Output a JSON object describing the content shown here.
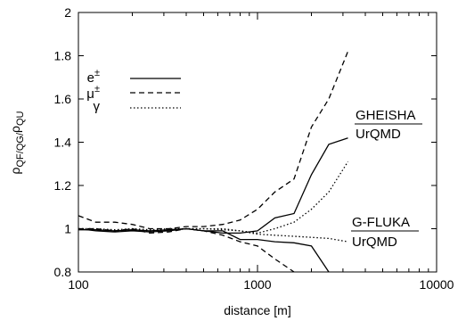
{
  "chart_data": {
    "type": "line",
    "xlabel": "distance [m]",
    "ylabel_parts": {
      "rho": "ρ",
      "sub": "QF/QG/",
      "rho2": "ρ",
      "sub2": "QU"
    },
    "xscale": "log",
    "xlim": [
      100,
      10000
    ],
    "ylim": [
      0.8,
      2.0
    ],
    "xticks": [
      100,
      1000,
      10000
    ],
    "xtick_labels": [
      "100",
      "1000",
      "10000"
    ],
    "yticks": [
      0.8,
      1.0,
      1.2,
      1.4,
      1.6,
      1.8,
      2.0
    ],
    "ytick_labels": [
      "0.8",
      "1",
      "1.2",
      "1.4",
      "1.6",
      "1.8",
      "2"
    ],
    "grid": false,
    "legend_position": "upper-left",
    "legend": [
      {
        "label_base": "e",
        "label_sup": "±",
        "style": "solid"
      },
      {
        "label_base": "μ",
        "label_sup": "±",
        "style": "dashed"
      },
      {
        "label_base": "γ",
        "label_sup": "",
        "style": "dotted"
      }
    ],
    "annotations": {
      "upper_top": "GHEISHA",
      "upper_bottom": "UrQMD",
      "lower_top": "G-FLUKA",
      "lower_bottom": "UrQMD"
    },
    "series": [
      {
        "style": "solid",
        "group": "GHEISHA",
        "x": [
          100,
          125,
          160,
          200,
          250,
          320,
          400,
          500,
          640,
          800,
          1000,
          1250,
          1600,
          2000,
          2500,
          3200
        ],
        "y": [
          0.995,
          0.995,
          0.99,
          0.995,
          0.99,
          0.995,
          1.0,
          0.99,
          0.98,
          0.98,
          0.99,
          1.05,
          1.07,
          1.25,
          1.39,
          1.42
        ]
      },
      {
        "style": "dashed",
        "group": "GHEISHA",
        "x": [
          100,
          125,
          160,
          200,
          250,
          320,
          400,
          500,
          640,
          800,
          1000,
          1250,
          1600,
          2000,
          2500,
          3200
        ],
        "y": [
          1.06,
          1.03,
          1.03,
          1.02,
          1.0,
          1.0,
          1.01,
          1.01,
          1.02,
          1.04,
          1.09,
          1.17,
          1.23,
          1.47,
          1.6,
          1.82
        ]
      },
      {
        "style": "dotted",
        "group": "GHEISHA",
        "x": [
          100,
          125,
          160,
          200,
          250,
          320,
          400,
          500,
          640,
          800,
          1000,
          1250,
          1600,
          2000,
          2500,
          3200
        ],
        "y": [
          1.0,
          1.0,
          0.99,
          0.99,
          0.99,
          0.99,
          1.0,
          1.0,
          1.0,
          0.99,
          0.98,
          1.0,
          1.03,
          1.09,
          1.17,
          1.31
        ]
      },
      {
        "style": "solid",
        "group": "G-FLUKA",
        "x": [
          100,
          125,
          160,
          200,
          250,
          320,
          400,
          500,
          640,
          800,
          1000,
          1250,
          1600,
          2000,
          2500
        ],
        "y": [
          1.0,
          0.99,
          0.985,
          0.99,
          0.985,
          0.99,
          1.0,
          0.99,
          0.99,
          0.95,
          0.95,
          0.94,
          0.935,
          0.92,
          0.8
        ]
      },
      {
        "style": "dashed",
        "group": "G-FLUKA",
        "x": [
          100,
          125,
          160,
          200,
          250,
          320,
          400,
          500,
          640,
          800,
          1000,
          1250,
          1600
        ],
        "y": [
          1.0,
          1.0,
          0.99,
          1.0,
          0.98,
          0.985,
          1.0,
          0.99,
          0.97,
          0.94,
          0.92,
          0.86,
          0.8
        ]
      },
      {
        "style": "dotted",
        "group": "G-FLUKA",
        "x": [
          100,
          125,
          160,
          200,
          250,
          320,
          400,
          500,
          640,
          800,
          1000,
          1250,
          1600,
          2000,
          2500,
          3200
        ],
        "y": [
          1.0,
          1.0,
          0.995,
          1.0,
          0.995,
          1.0,
          1.0,
          1.0,
          0.995,
          0.99,
          0.975,
          0.97,
          0.965,
          0.96,
          0.955,
          0.94
        ]
      }
    ]
  }
}
